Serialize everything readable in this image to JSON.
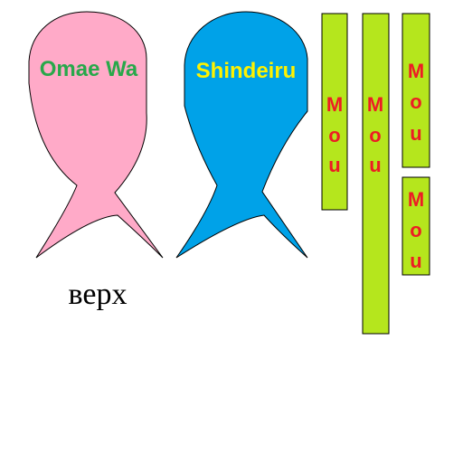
{
  "figures": [
    {
      "label": "Omae Wa",
      "fill": "#ffaac8",
      "text_color": "#28a84a"
    },
    {
      "label": "Shindeiru",
      "fill": "#00a2e8",
      "text_color": "#fff200"
    }
  ],
  "bars": [
    {
      "letters": [
        "M",
        "o",
        "u"
      ],
      "fill": "#b5e61d",
      "text_color": "#ed1c24"
    },
    {
      "letters": [
        "M",
        "o",
        "u"
      ],
      "fill": "#b5e61d",
      "text_color": "#ed1c24"
    },
    {
      "letters": [
        "M",
        "o",
        "u"
      ],
      "fill": "#b5e61d",
      "text_color": "#ed1c24"
    },
    {
      "letters": [
        "M",
        "o",
        "u"
      ],
      "fill": "#b5e61d",
      "text_color": "#ed1c24"
    }
  ],
  "caption": "верх"
}
